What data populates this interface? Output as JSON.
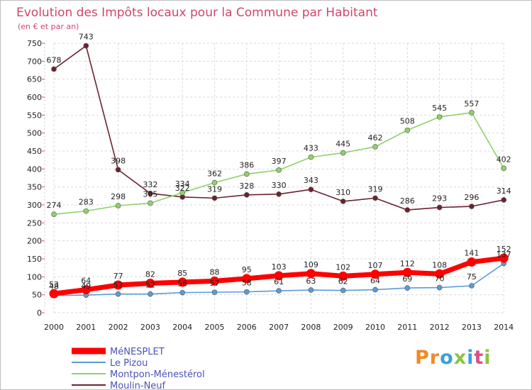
{
  "chart_data": {
    "type": "line",
    "title": "Evolution des Impôts locaux pour la Commune par Habitant",
    "subtitle": "(en € et par an)",
    "categories": [
      "2000",
      "2001",
      "2002",
      "2003",
      "2004",
      "2005",
      "2006",
      "2007",
      "2008",
      "2009",
      "2010",
      "2011",
      "2012",
      "2013",
      "2014"
    ],
    "ylim": [
      0,
      750
    ],
    "yticks": [
      0,
      50,
      100,
      150,
      200,
      250,
      300,
      350,
      400,
      450,
      500,
      550,
      600,
      650,
      700,
      750
    ],
    "series": [
      {
        "name": "MéNESPLET",
        "color": "#ff0000",
        "values": [
          53,
          64,
          77,
          82,
          85,
          88,
          95,
          103,
          109,
          102,
          107,
          112,
          108,
          141,
          152
        ]
      },
      {
        "name": "Le Pizou",
        "color": "#5b9bd5",
        "values": [
          48,
          49,
          52,
          52,
          56,
          57,
          58,
          61,
          63,
          62,
          64,
          69,
          70,
          75,
          137
        ]
      },
      {
        "name": "Montpon-Ménestérol",
        "color": "#8fd16a",
        "values": [
          274,
          283,
          298,
          305,
          334,
          362,
          386,
          397,
          433,
          445,
          462,
          508,
          545,
          557,
          402
        ]
      },
      {
        "name": "Moulin-Neuf",
        "color": "#6b2230",
        "values": [
          678,
          743,
          398,
          332,
          322,
          319,
          328,
          330,
          343,
          310,
          319,
          286,
          293,
          296,
          314
        ]
      }
    ]
  },
  "logo": {
    "text": "Proxiti"
  }
}
